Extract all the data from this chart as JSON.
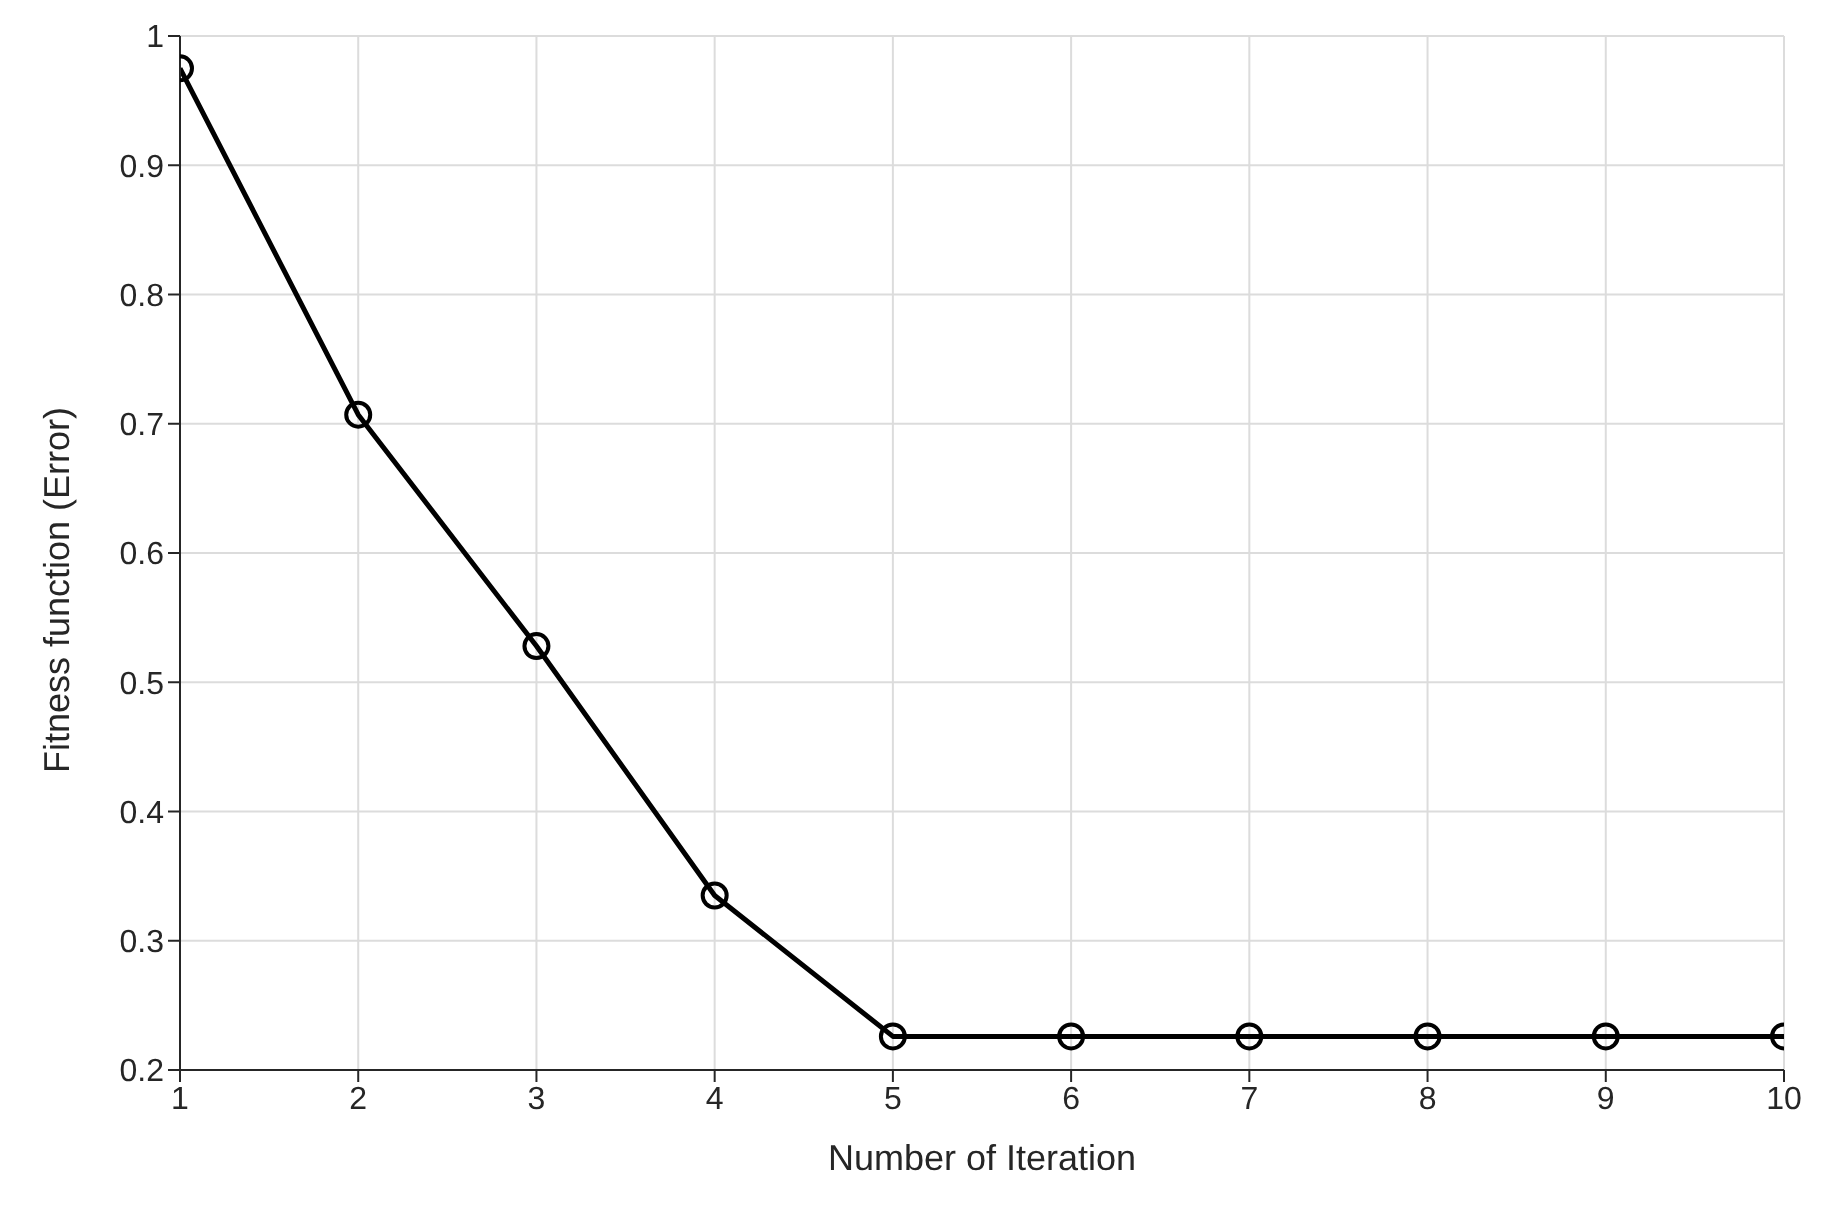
{
  "chart_data": {
    "type": "line",
    "xlabel": "Number of Iteration",
    "ylabel": "Fitness function (Error)",
    "x": [
      1,
      2,
      3,
      4,
      5,
      6,
      7,
      8,
      9,
      10
    ],
    "series": [
      {
        "color": "#000000",
        "values": [
          0.975,
          0.707,
          0.528,
          0.335,
          0.226,
          0.226,
          0.226,
          0.226,
          0.226,
          0.226
        ]
      }
    ],
    "xlim": [
      1,
      10
    ],
    "xticks": [
      1,
      2,
      3,
      4,
      5,
      6,
      7,
      8,
      9,
      10
    ],
    "ylim": [
      0.2,
      1
    ],
    "yticks": [
      0.2,
      0.3,
      0.4,
      0.5,
      0.6,
      0.7,
      0.8,
      0.9,
      1
    ],
    "grid": true,
    "marker": "circle",
    "line_style": "solid"
  }
}
